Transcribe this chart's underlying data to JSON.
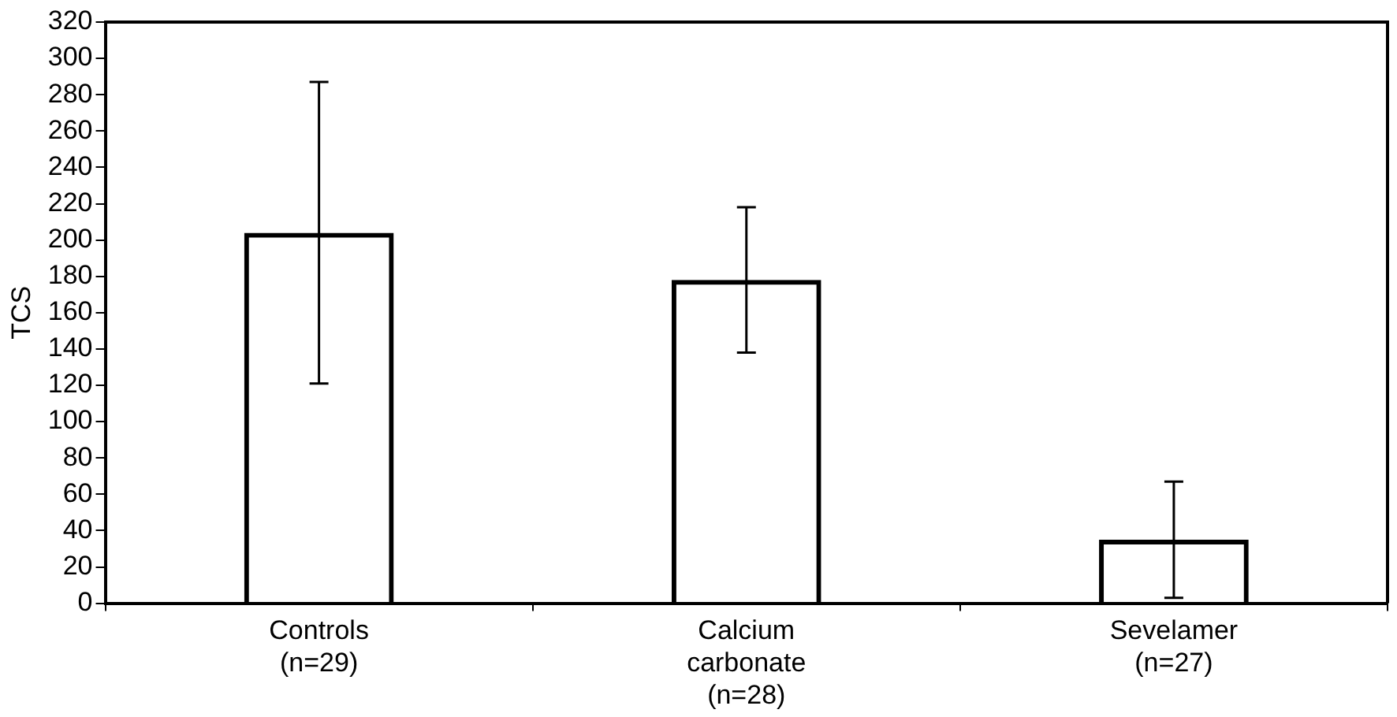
{
  "chart_data": {
    "type": "bar",
    "ylabel": "TCS",
    "categories": [
      "Controls\n(n=29)",
      "Calcium\ncarbonate\n(n=28)",
      "Sevelamer\n(n=27)"
    ],
    "values": [
      204,
      178,
      35
    ],
    "errors": [
      83,
      40,
      32
    ],
    "color": "#000000",
    "ylim": [
      0,
      320
    ],
    "yticks": [
      0,
      20,
      40,
      60,
      80,
      100,
      120,
      140,
      160,
      180,
      200,
      220,
      240,
      260,
      280,
      300,
      320
    ],
    "grid": false,
    "legend": false
  }
}
